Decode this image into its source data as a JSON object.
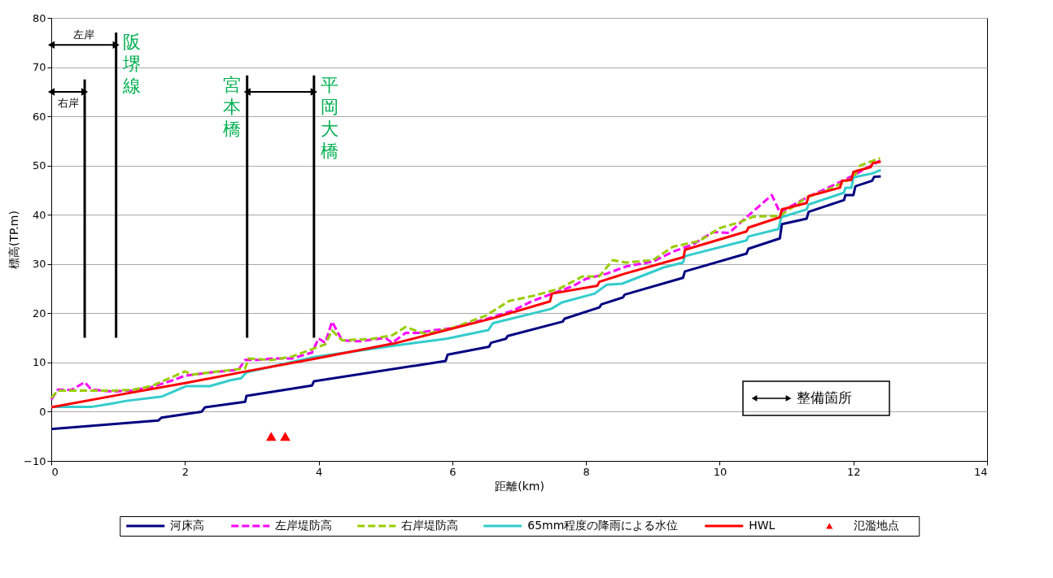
{
  "chart_data": {
    "type": "line",
    "xlabel": "距離(km)",
    "ylabel": "標高(TP.m)",
    "xlim": [
      0,
      14
    ],
    "xticks": [
      0,
      2,
      4,
      6,
      8,
      10,
      12,
      14
    ],
    "ylim": [
      -10,
      80
    ],
    "yticks": [
      -10,
      0,
      10,
      20,
      30,
      40,
      50,
      60,
      70,
      80
    ],
    "grid": "y",
    "legend": "bottom",
    "series": [
      {
        "name": "河床高",
        "color": "#000080",
        "line_style": "solid",
        "x": [
          0,
          1.6,
          1.65,
          2.25,
          2.3,
          2.9,
          2.92,
          3.9,
          3.93,
          5.9,
          5.93,
          6.55,
          6.58,
          6.8,
          6.83,
          7.65,
          7.68,
          8.2,
          8.23,
          8.55,
          8.58,
          9.45,
          9.48,
          10.4,
          10.43,
          10.9,
          10.93,
          11.3,
          11.33,
          11.86,
          11.88,
          12.0,
          12.03,
          12.28,
          12.31,
          12.41
        ],
        "values": [
          -3.5,
          -1.8,
          -1.2,
          0,
          0.9,
          2,
          3.2,
          5.3,
          6.2,
          10.3,
          11.6,
          13.2,
          14,
          14.8,
          15.4,
          18.3,
          18.9,
          21.2,
          21.8,
          23.2,
          23.8,
          27.2,
          28.5,
          32.1,
          33.1,
          35.2,
          38.1,
          39.2,
          40.6,
          43,
          44,
          44,
          45.8,
          46.9,
          47.7,
          47.8
        ]
      },
      {
        "name": "左岸堤防高",
        "color": "#ff00ff",
        "line_style": "dashed",
        "x": [
          0,
          0.1,
          0.3,
          0.5,
          0.6,
          0.9,
          1.2,
          1.5,
          1.8,
          2.0,
          2.4,
          2.8,
          2.9,
          3.1,
          3.3,
          3.6,
          3.9,
          4.0,
          4.1,
          4.2,
          4.35,
          4.6,
          5.0,
          5.1,
          5.3,
          5.5,
          5.7,
          6.0,
          6.5,
          6.9,
          7.2,
          7.5,
          7.8,
          8.0,
          8.3,
          8.6,
          9.0,
          9.3,
          9.6,
          9.9,
          10.14,
          10.4,
          10.78,
          10.9,
          11.3,
          11.7,
          12.0,
          12.4
        ],
        "values": [
          2.5,
          4.5,
          4.4,
          6,
          4.5,
          4.1,
          4.3,
          5,
          6.3,
          7.3,
          8,
          8.5,
          10.5,
          10.5,
          10.8,
          10.8,
          12,
          14.9,
          14,
          18.3,
          14.5,
          14.3,
          15,
          14,
          16,
          16,
          16.5,
          17,
          18.8,
          20.5,
          22.5,
          24,
          25.5,
          27,
          28,
          29.5,
          30.5,
          32.5,
          34,
          36.5,
          36.3,
          39.5,
          44,
          40.5,
          43.5,
          46,
          48,
          51
        ]
      },
      {
        "name": "右岸堤防高",
        "color": "#99cc00",
        "line_style": "dashed",
        "x": [
          0,
          0.1,
          0.5,
          0.9,
          1.2,
          1.5,
          2.0,
          2.1,
          2.5,
          2.9,
          2.95,
          3.3,
          3.6,
          3.9,
          4.1,
          4.2,
          4.35,
          4.8,
          5.1,
          5.3,
          5.6,
          6.0,
          6.5,
          6.85,
          7.2,
          7.6,
          7.95,
          8.2,
          8.4,
          8.6,
          9.0,
          9.3,
          9.7,
          10.0,
          10.3,
          10.5,
          10.9,
          11.3,
          11.6,
          12.0,
          12.1,
          12.4
        ],
        "values": [
          2.8,
          4.3,
          4.3,
          4.3,
          4.4,
          5.2,
          8.2,
          7.5,
          8.2,
          8.8,
          10.8,
          10.5,
          11.2,
          12.7,
          13.7,
          16.5,
          14.5,
          14.8,
          15.5,
          17.2,
          15.8,
          17,
          19.5,
          22.5,
          23.5,
          25,
          27.5,
          27.5,
          30.8,
          30.3,
          30.8,
          33.5,
          34.7,
          37.3,
          38.5,
          39.6,
          39.8,
          43.5,
          45,
          47.5,
          50,
          51.5
        ]
      },
      {
        "name": "65mm程度の降雨による水位",
        "color": "#33cccc",
        "line_style": "solid",
        "x": [
          0,
          0.61,
          0.92,
          1.12,
          1.66,
          2.02,
          2.37,
          2.68,
          2.84,
          2.92,
          3.93,
          5.17,
          5.91,
          6.54,
          6.61,
          7.48,
          7.64,
          8.13,
          8.31,
          8.54,
          9.16,
          9.45,
          9.48,
          10.4,
          10.43,
          10.88,
          10.92,
          11.3,
          11.33,
          11.86,
          11.88,
          11.97,
          12.0,
          12.28,
          12.41
        ],
        "values": [
          1,
          1,
          1.7,
          2.2,
          3.1,
          5.2,
          5.2,
          6.4,
          6.8,
          8,
          11.1,
          13.5,
          14.8,
          16.6,
          18,
          20.9,
          22.2,
          24,
          25.8,
          26,
          29.3,
          30.3,
          31.6,
          34.8,
          35.6,
          37.1,
          39.5,
          41.1,
          42.1,
          44.5,
          45.5,
          45.5,
          47.6,
          48.4,
          49.1
        ]
      },
      {
        "name": "HWL",
        "color": "#ff0000",
        "line_style": "solid",
        "x": [
          0,
          1,
          2,
          2.88,
          3.88,
          5.17,
          6.61,
          7.46,
          7.49,
          8.17,
          8.2,
          8.57,
          9.46,
          9.48,
          10.4,
          10.43,
          10.9,
          10.93,
          11.3,
          11.33,
          11.8,
          11.83,
          11.97,
          12.0,
          12.26,
          12.29,
          12.41
        ],
        "values": [
          0.9,
          3.4,
          5.8,
          8.1,
          10.6,
          14,
          19,
          22.4,
          24,
          25.6,
          26.4,
          28,
          31.4,
          32.9,
          36.6,
          37.4,
          39.5,
          41.1,
          42.4,
          43.8,
          45.5,
          46.9,
          47.1,
          48.7,
          49.7,
          50.5,
          50.8
        ]
      },
      {
        "name": "氾濫地点",
        "color": "#ff0000",
        "type": "scatter",
        "marker": "triangle",
        "x": [
          3.29,
          3.5
        ],
        "values": [
          -5,
          -5
        ]
      }
    ],
    "ref_lines": [
      {
        "axis": "x",
        "value": 0.5,
        "label": null,
        "color": "#000000"
      },
      {
        "axis": "x",
        "value": 0.97,
        "label": "阪堺線",
        "color": "#000000"
      },
      {
        "axis": "x",
        "value": 2.93,
        "label": "宮本橋",
        "color": "#000000"
      },
      {
        "axis": "x",
        "value": 3.93,
        "label": "平岡大橋",
        "color": "#000000"
      }
    ],
    "annotations": [
      "左岸",
      "右岸",
      "整備箇所"
    ]
  }
}
